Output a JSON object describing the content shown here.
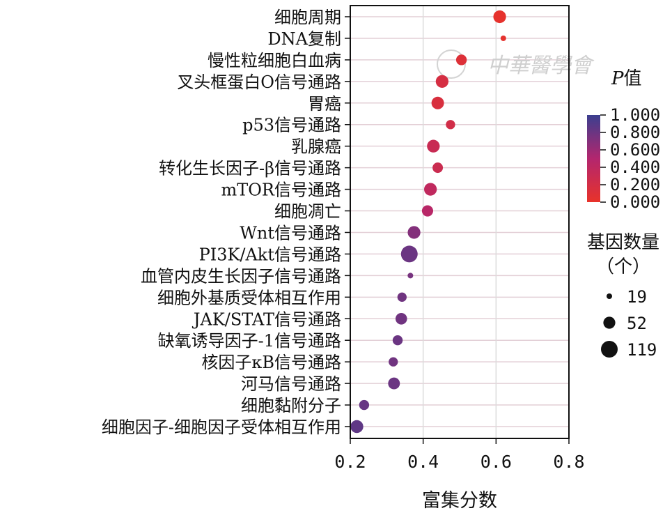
{
  "chart_data": {
    "type": "scatter",
    "subtype": "bubble-dot-plot",
    "xlabel": "富集分数",
    "xlim": [
      0.2,
      0.8
    ],
    "xticks": [
      "0.2",
      "0.4",
      "0.6",
      "0.8"
    ],
    "xtick_values": [
      0.2,
      0.4,
      0.6,
      0.8
    ],
    "grid": true,
    "categories": [
      "细胞周期",
      "DNA复制",
      "慢性粒细胞白血病",
      "叉头框蛋白O信号通路",
      "胃癌",
      "p53信号通路",
      "乳腺癌",
      "转化生长因子-β信号通路",
      "mTOR信号通路",
      "细胞凋亡",
      "Wnt信号通路",
      "PI3K/Akt信号通路",
      "血管内皮生长因子信号通路",
      "细胞外基质受体相互作用",
      "JAK/STAT信号通路",
      "缺氧诱导因子-1信号通路",
      "核因子κB信号通路",
      "河马信号通路",
      "细胞黏附分子",
      "细胞因子-细胞因子受体相互作用"
    ],
    "points": [
      {
        "term": "细胞周期",
        "score": 0.61,
        "count": 60,
        "p": 0.02
      },
      {
        "term": "DNA复制",
        "score": 0.62,
        "count": 19,
        "p": 0.03
      },
      {
        "term": "慢性粒细胞白血病",
        "score": 0.505,
        "count": 40,
        "p": 0.1
      },
      {
        "term": "叉头框蛋白O信号通路",
        "score": 0.452,
        "count": 60,
        "p": 0.18
      },
      {
        "term": "胃癌",
        "score": 0.44,
        "count": 58,
        "p": 0.15
      },
      {
        "term": "p53信号通路",
        "score": 0.475,
        "count": 30,
        "p": 0.22
      },
      {
        "term": "乳腺癌",
        "score": 0.428,
        "count": 60,
        "p": 0.3
      },
      {
        "term": "转化生长因子-β信号通路",
        "score": 0.44,
        "count": 38,
        "p": 0.28
      },
      {
        "term": "mTOR信号通路",
        "score": 0.42,
        "count": 60,
        "p": 0.38
      },
      {
        "term": "细胞凋亡",
        "score": 0.412,
        "count": 45,
        "p": 0.45
      },
      {
        "term": "Wnt信号通路",
        "score": 0.375,
        "count": 60,
        "p": 0.7
      },
      {
        "term": "PI3K/Akt信号通路",
        "score": 0.362,
        "count": 119,
        "p": 0.8
      },
      {
        "term": "血管内皮生长因子信号通路",
        "score": 0.365,
        "count": 19,
        "p": 0.75
      },
      {
        "term": "细胞外基质受体相互作用",
        "score": 0.342,
        "count": 30,
        "p": 0.78
      },
      {
        "term": "JAK/STAT信号通路",
        "score": 0.34,
        "count": 48,
        "p": 0.78
      },
      {
        "term": "缺氧诱导因子-1信号通路",
        "score": 0.33,
        "count": 35,
        "p": 0.8
      },
      {
        "term": "核因子κB信号通路",
        "score": 0.318,
        "count": 30,
        "p": 0.78
      },
      {
        "term": "河马信号通路",
        "score": 0.32,
        "count": 50,
        "p": 0.8
      },
      {
        "term": "细胞黏附分子",
        "score": 0.238,
        "count": 35,
        "p": 0.82
      },
      {
        "term": "细胞因子-细胞因子受体相互作用",
        "score": 0.218,
        "count": 62,
        "p": 0.85
      }
    ],
    "color_legend": {
      "title": "P值",
      "title_italic_part": "P",
      "title_rest": "值",
      "ticks": [
        "1.000",
        "0.800",
        "0.600",
        "0.400",
        "0.200",
        "0.000"
      ],
      "tick_values": [
        1.0,
        0.8,
        0.6,
        0.4,
        0.2,
        0.0
      ],
      "low_color": "#e8332a",
      "mid_color": "#b3266e",
      "high_color": "#3b3f8f"
    },
    "size_legend": {
      "title_line1": "基因数量",
      "title_line2": "（个）",
      "labels": [
        "19",
        "52",
        "119"
      ],
      "values": [
        19,
        52,
        119
      ]
    },
    "watermark": "中華醫學會"
  }
}
